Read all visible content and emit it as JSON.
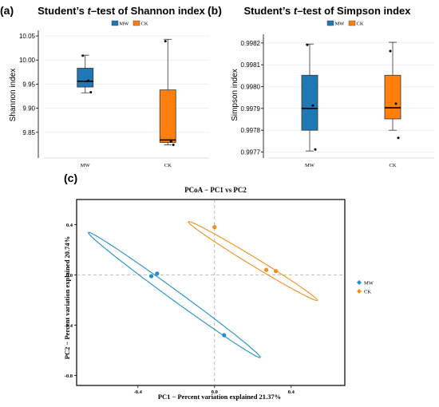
{
  "chart_data": [
    {
      "panel_label": "(a)",
      "type": "box",
      "title_pre": "Student’s ",
      "title_t": "t",
      "title_post": "–test of Shannon index",
      "ylabel": "Shannon index",
      "ylim": [
        9.8,
        10.055
      ],
      "yticks": [
        "9.85",
        "9.90",
        "9.95",
        "10.00",
        "10.05"
      ],
      "categories": [
        "MW",
        "CK"
      ],
      "legend": [
        {
          "label": "MW",
          "color": "#1f77b4"
        },
        {
          "label": "CK",
          "color": "#ff7f0e"
        }
      ],
      "boxes": [
        {
          "name": "MW",
          "color": "#1f77b4",
          "min": 9.932,
          "q1": 9.944,
          "median": 9.956,
          "q3": 9.983,
          "max": 10.01,
          "points": [
            10.009,
            9.957,
            9.933
          ]
        },
        {
          "name": "CK",
          "color": "#ff7f0e",
          "min": 9.824,
          "q1": 9.829,
          "median": 9.834,
          "q3": 9.938,
          "max": 10.043,
          "points": [
            10.039,
            9.831,
            9.824
          ]
        }
      ]
    },
    {
      "panel_label": "(b)",
      "type": "box",
      "title_pre": "Student’s ",
      "title_t": "t",
      "title_post": "–test of Simpson index",
      "ylabel": "Simpson index",
      "ylim": [
        0.99768,
        0.998225
      ],
      "yticks": [
        "0.9977",
        "0.9978",
        "0.9979",
        "0.9980",
        "0.9981",
        "0.9982"
      ],
      "categories": [
        "MW",
        "CK"
      ],
      "legend": [
        {
          "label": "MW",
          "color": "#1f77b4"
        },
        {
          "label": "CK",
          "color": "#ff7f0e"
        }
      ],
      "boxes": [
        {
          "name": "MW",
          "color": "#1f77b4",
          "min": 0.997705,
          "q1": 0.9978,
          "median": 0.9979,
          "q3": 0.998052,
          "max": 0.998195,
          "points": [
            0.998191,
            0.997913,
            0.997712
          ]
        },
        {
          "name": "CK",
          "color": "#ff7f0e",
          "min": 0.9978,
          "q1": 0.997852,
          "median": 0.997903,
          "q3": 0.998052,
          "max": 0.998203,
          "points": [
            0.998163,
            0.997922,
            0.997765
          ]
        }
      ]
    },
    {
      "panel_label": "(c)",
      "type": "scatter",
      "title": "PCoA − PC1 vs PC2",
      "xlabel": "PC1 − Percent variation explained 21.37%",
      "ylabel": "PC2 − Percent variation explained 20.74%",
      "xlim": [
        -0.72,
        0.68
      ],
      "ylim": [
        -0.88,
        0.6
      ],
      "xticks": [
        -0.4,
        0.0,
        0.4
      ],
      "xtick_labels": [
        "-0.4",
        "0.0",
        "0.4"
      ],
      "yticks": [
        0.4,
        0.0,
        -0.4,
        -0.8
      ],
      "ytick_labels": [
        "0.4",
        "0.0",
        "-0.4",
        "-0.8"
      ],
      "legend": [
        {
          "label": "MW",
          "color": "#1f8fcd"
        },
        {
          "label": "CK",
          "color": "#f28e1c"
        }
      ],
      "series": [
        {
          "name": "MW",
          "color": "#1f8fcd",
          "x": [
            -0.33,
            -0.3,
            0.05
          ],
          "y": [
            -0.01,
            0.01,
            -0.48
          ]
        },
        {
          "name": "CK",
          "color": "#f28e1c",
          "x": [
            0.0,
            0.27,
            0.32
          ],
          "y": [
            0.38,
            0.04,
            0.03
          ]
        }
      ],
      "ellipses": [
        {
          "name": "MW",
          "color": "#1f8fcd",
          "cx": -0.21,
          "cy": -0.16,
          "a": 0.67,
          "b": 0.032,
          "angle_deg": -48
        },
        {
          "name": "CK",
          "color": "#f28e1c",
          "cx": 0.2,
          "cy": 0.11,
          "a": 0.46,
          "b": 0.028,
          "angle_deg": -43
        }
      ]
    }
  ]
}
